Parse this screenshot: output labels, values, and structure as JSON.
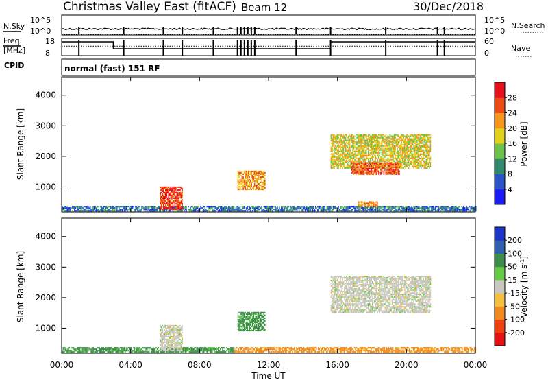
{
  "header": {
    "station": "Christmas Valley East (fitACF)",
    "beam": "Beam 12",
    "date": "30/Dec/2018"
  },
  "nsky_panel": {
    "left_label": "N.Sky",
    "right_label": "N.Search",
    "left_ticks": [
      "10^5",
      "10^0"
    ],
    "right_ticks": [
      "10^5",
      "10^0"
    ]
  },
  "freq_panel": {
    "left_label_1": "Freq.",
    "left_label_2": "[MHz]",
    "right_label": "Nave",
    "left_ticks": [
      "18",
      "8"
    ],
    "right_ticks": [
      "60",
      "0"
    ],
    "freq_steps": [
      [
        0,
        16
      ],
      [
        3,
        16
      ],
      [
        3,
        12
      ],
      [
        15.6,
        12
      ],
      [
        15.6,
        16
      ],
      [
        24,
        16
      ]
    ],
    "nave_level": 13.5
  },
  "cpid": {
    "label": "CPID",
    "value": "normal (fast) 151 RF"
  },
  "time_axis": {
    "title": "Time UT",
    "ticks": [
      "00:00",
      "04:00",
      "08:00",
      "12:00",
      "16:00",
      "20:00",
      "00:00"
    ]
  },
  "range_axis": {
    "title": "Slant Range [km]",
    "ticks": [
      "1000",
      "2000",
      "3000",
      "4000"
    ]
  },
  "power_colorbar": {
    "title": "Power [dB]",
    "ticks": [
      "4",
      "8",
      "12",
      "16",
      "20",
      "24",
      "28"
    ],
    "colors": [
      "#1a1aff",
      "#2a55c8",
      "#2f8a6e",
      "#6cc24a",
      "#e2d21a",
      "#f7961c",
      "#f04a14",
      "#e8101a"
    ]
  },
  "velocity_colorbar": {
    "title_main": "Velocity [m s",
    "title_sup": "-1",
    "title_end": "]",
    "ticks": [
      "200",
      "100",
      "50",
      "15",
      "-15",
      "-50",
      "-100",
      "-200"
    ],
    "colors": [
      "#1e36c8",
      "#2f5fb0",
      "#3c8e4a",
      "#66cc44",
      "#c8c8c0",
      "#f4c040",
      "#f08a1c",
      "#f04010",
      "#e81010"
    ]
  },
  "chart_data": {
    "type": "heatmap",
    "title": "Christmas Valley East (fitACF) Beam 12 30/Dec/2018",
    "xlabel": "Time UT",
    "ylabel": "Slant Range [km]",
    "xlim": [
      0,
      24
    ],
    "ylim": [
      180,
      4600
    ],
    "panels": [
      {
        "name": "Power [dB]",
        "regions": [
          {
            "t": [
              0,
              24
            ],
            "r": [
              200,
              380
            ],
            "value": 8
          },
          {
            "t": [
              5.7,
              7.0
            ],
            "r": [
              250,
              1000
            ],
            "value": 28
          },
          {
            "t": [
              10.2,
              11.8
            ],
            "r": [
              900,
              1500
            ],
            "value": 22
          },
          {
            "t": [
              15.6,
              21.4
            ],
            "r": [
              1600,
              2700
            ],
            "value": 18
          },
          {
            "t": [
              16.8,
              19.6
            ],
            "r": [
              1400,
              1800
            ],
            "value": 26
          },
          {
            "t": [
              17.2,
              18.3
            ],
            "r": [
              350,
              520
            ],
            "value": 22
          }
        ]
      },
      {
        "name": "Velocity [m s-1]",
        "regions": [
          {
            "t": [
              0,
              10
            ],
            "r": [
              200,
              380
            ],
            "value": 40
          },
          {
            "t": [
              10,
              24
            ],
            "r": [
              200,
              380
            ],
            "value": -40
          },
          {
            "t": [
              5.7,
              7.0
            ],
            "r": [
              250,
              1100
            ],
            "value": 0
          },
          {
            "t": [
              10.2,
              11.8
            ],
            "r": [
              900,
              1500
            ],
            "value": 40
          },
          {
            "t": [
              15.6,
              21.4
            ],
            "r": [
              1500,
              2700
            ],
            "value": 0
          }
        ]
      }
    ]
  }
}
